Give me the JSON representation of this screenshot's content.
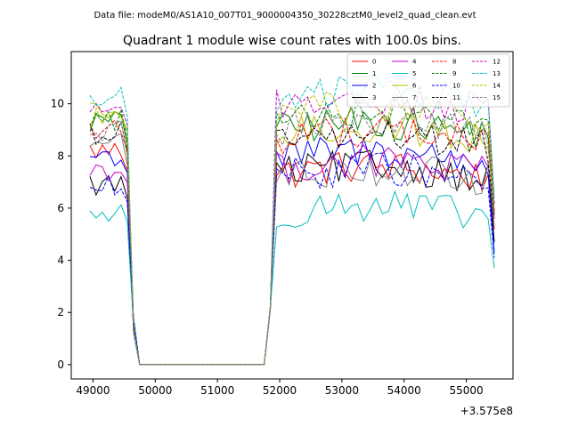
{
  "chart_data": {
    "type": "line",
    "suptitle": "Data file: modeM0/AS1A10_007T01_9000004350_30228cztM0_level2_quad_clean.evt",
    "title": "Quadrant 1 module wise count rates with 100.0s bins.",
    "xlabel": "",
    "ylabel": "",
    "x_offset_label": "+3.575e8",
    "xlim": [
      48650,
      55750
    ],
    "ylim": [
      -0.55,
      12.0
    ],
    "xticks": [
      49000,
      50000,
      51000,
      52000,
      53000,
      54000,
      55000
    ],
    "xtick_labels": [
      "49000",
      "50000",
      "51000",
      "52000",
      "53000",
      "54000",
      "55000"
    ],
    "yticks": [
      0,
      2,
      4,
      6,
      8,
      10
    ],
    "ytick_labels": [
      "0",
      "2",
      "4",
      "6",
      "8",
      "10"
    ],
    "legend_position": "top-right",
    "time": {
      "start": 48950,
      "step": 100,
      "count": 66,
      "gap_from": 49750,
      "gap_to": 51750,
      "ramp_points": [
        49650,
        51850
      ]
    },
    "series": [
      {
        "name": "0",
        "color": "#ff0000",
        "dash": "solid",
        "level": 7.3,
        "pre": 8.2,
        "end": 5.2
      },
      {
        "name": "1",
        "color": "#008000",
        "dash": "solid",
        "level": 9.0,
        "pre": 9.3,
        "end": 5.8
      },
      {
        "name": "2",
        "color": "#0000ff",
        "dash": "solid",
        "level": 7.9,
        "pre": 8.0,
        "end": 4.3
      },
      {
        "name": "3",
        "color": "#000000",
        "dash": "solid",
        "level": 7.3,
        "pre": 6.9,
        "end": 4.7
      },
      {
        "name": "4",
        "color": "#bf00bf",
        "dash": "solid",
        "level": 7.5,
        "pre": 7.5,
        "end": 5.6
      },
      {
        "name": "5",
        "color": "#00bfbf",
        "dash": "solid",
        "level": 5.8,
        "pre": 5.8,
        "end": 3.7
      },
      {
        "name": "6",
        "color": "#bfbf00",
        "dash": "solid",
        "level": 8.8,
        "pre": 9.6,
        "end": 5.9
      },
      {
        "name": "7",
        "color": "#808080",
        "dash": "solid",
        "level": 7.2,
        "pre": 8.5,
        "end": 5.3
      },
      {
        "name": "8",
        "color": "#ff0000",
        "dash": "dashed",
        "level": 8.7,
        "pre": 9.0,
        "end": 5.9
      },
      {
        "name": "9",
        "color": "#008000",
        "dash": "dashed",
        "level": 9.5,
        "pre": 9.4,
        "end": 6.1
      },
      {
        "name": "10",
        "color": "#0000ff",
        "dash": "dashed",
        "level": 7.2,
        "pre": 6.8,
        "end": 4.1
      },
      {
        "name": "11",
        "color": "#000000",
        "dash": "dashed",
        "level": 8.5,
        "pre": 8.9,
        "end": 5.7
      },
      {
        "name": "12",
        "color": "#bf00bf",
        "dash": "dashed",
        "level": 9.9,
        "pre": 9.9,
        "end": 6.2
      },
      {
        "name": "13",
        "color": "#00bfbf",
        "dash": "dashed",
        "level": 10.2,
        "pre": 10.2,
        "end": 6.4
      },
      {
        "name": "14",
        "color": "#bfbf00",
        "dash": "dashed",
        "level": 9.6,
        "pre": 9.5,
        "end": 6.0
      },
      {
        "name": "15",
        "color": "#808080",
        "dash": "dashed",
        "level": 9.0,
        "pre": 8.9,
        "end": 5.8
      }
    ]
  }
}
